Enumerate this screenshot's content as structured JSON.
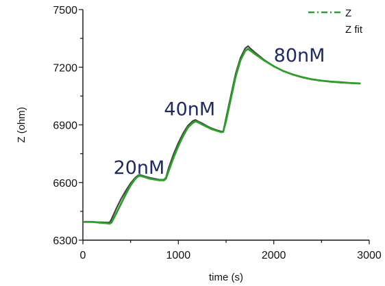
{
  "chart_data": {
    "type": "line",
    "title": "",
    "xlabel": "time (s)",
    "ylabel": "Z (ohm)",
    "xlim": [
      0,
      3000
    ],
    "ylim": [
      6300,
      7500
    ],
    "x_ticks": [
      0,
      1000,
      2000,
      3000
    ],
    "x_tick_labels": [
      "0",
      "1000",
      "2000",
      "3000"
    ],
    "y_ticks": [
      6300,
      6600,
      6900,
      7200,
      7500
    ],
    "y_tick_labels": [
      "6300",
      "6600",
      "6900",
      "7200",
      "7500"
    ],
    "legend": {
      "placement": "top-right",
      "entries": [
        "Z",
        "Z fit"
      ]
    },
    "annotations": [
      {
        "text": "20nM",
        "x": 320,
        "y": 6645
      },
      {
        "text": "40nM",
        "x": 850,
        "y": 6950
      },
      {
        "text": "80nM",
        "x": 2000,
        "y": 7230
      }
    ],
    "series": [
      {
        "name": "Z",
        "color": "#2f9e2a",
        "style": "dash-dot",
        "x": [
          0,
          100,
          200,
          250,
          280,
          300,
          350,
          400,
          450,
          500,
          550,
          580,
          600,
          650,
          700,
          750,
          800,
          850,
          870,
          900,
          950,
          1000,
          1050,
          1100,
          1150,
          1180,
          1200,
          1250,
          1300,
          1350,
          1400,
          1450,
          1470,
          1500,
          1550,
          1600,
          1650,
          1700,
          1730,
          1750,
          1800,
          1900,
          2000,
          2100,
          2200,
          2300,
          2400,
          2500,
          2600,
          2700,
          2800,
          2900
        ],
        "y": [
          6395,
          6395,
          6390,
          6388,
          6386,
          6392,
          6440,
          6490,
          6540,
          6585,
          6620,
          6633,
          6635,
          6628,
          6620,
          6616,
          6612,
          6612,
          6620,
          6662,
          6730,
          6790,
          6842,
          6886,
          6910,
          6918,
          6915,
          6902,
          6890,
          6878,
          6870,
          6862,
          6864,
          6920,
          7035,
          7150,
          7235,
          7285,
          7295,
          7288,
          7270,
          7235,
          7205,
          7180,
          7162,
          7148,
          7137,
          7130,
          7125,
          7122,
          7118,
          7116
        ]
      },
      {
        "name": "Z fit",
        "color": "#444444",
        "style": "solid",
        "x": [
          0,
          100,
          200,
          250,
          280,
          300,
          350,
          400,
          450,
          500,
          550,
          580,
          600,
          650,
          700,
          750,
          800,
          850,
          870,
          900,
          950,
          1000,
          1050,
          1100,
          1150,
          1180,
          1200,
          1250,
          1300,
          1350,
          1400,
          1450,
          1470,
          1500,
          1550,
          1600,
          1650,
          1700,
          1730,
          1750,
          1800,
          1900,
          2000,
          2100,
          2200,
          2300,
          2400,
          2500,
          2600,
          2700,
          2800,
          2900
        ],
        "y": [
          6395,
          6395,
          6393,
          6392,
          6392,
          6410,
          6465,
          6515,
          6558,
          6596,
          6626,
          6638,
          6640,
          6632,
          6625,
          6620,
          6615,
          6615,
          6626,
          6678,
          6748,
          6806,
          6856,
          6896,
          6920,
          6926,
          6920,
          6908,
          6894,
          6882,
          6873,
          6866,
          6866,
          6936,
          7052,
          7166,
          7248,
          7298,
          7310,
          7300,
          7278,
          7238,
          7205,
          7180,
          7161,
          7147,
          7136,
          7129,
          7124,
          7120,
          7117,
          7115
        ]
      }
    ]
  }
}
